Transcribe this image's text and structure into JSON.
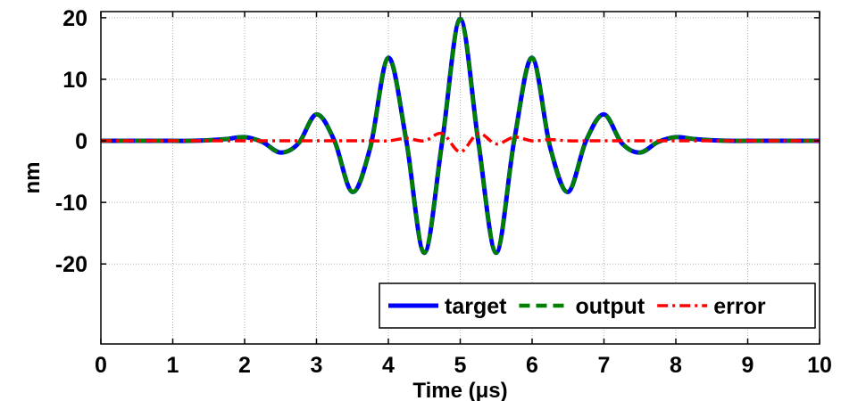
{
  "chart_data": {
    "type": "line",
    "title": "",
    "xlabel": "Time (μs)",
    "ylabel": "nm",
    "xlim": [
      0,
      10
    ],
    "ylim": [
      -33,
      21
    ],
    "grid": true,
    "legend_position": "bottom-right",
    "legend_orientation": "horizontal",
    "x_ticks": [
      0,
      1,
      2,
      3,
      4,
      5,
      6,
      7,
      8,
      9,
      10
    ],
    "x_tick_labels": [
      "0",
      "1",
      "2",
      "3",
      "4",
      "5",
      "6",
      "7",
      "8",
      "9",
      "10"
    ],
    "y_ticks": [
      20,
      10,
      0,
      -10,
      -20
    ],
    "y_tick_labels": [
      "20",
      "10",
      "0",
      "-10",
      "-20"
    ],
    "x": [
      0,
      0.25,
      0.5,
      0.75,
      1,
      1.25,
      1.5,
      1.75,
      2,
      2.25,
      2.5,
      2.75,
      3,
      3.25,
      3.5,
      3.75,
      4,
      4.25,
      4.5,
      4.75,
      5,
      5.25,
      5.5,
      5.75,
      6,
      6.25,
      6.5,
      6.75,
      7,
      7.25,
      7.5,
      7.75,
      8,
      8.25,
      8.5,
      8.75,
      9,
      9.25,
      9.5,
      9.75,
      10
    ],
    "series": [
      {
        "name": "target",
        "color": "#0000ff",
        "style": "solid",
        "values": [
          0,
          0,
          0,
          0,
          0,
          0,
          0.1,
          0.3,
          0.6,
          -0.2,
          -1.9,
          -0.4,
          4.3,
          0,
          -8.3,
          -1,
          13.5,
          0,
          -18.2,
          0,
          19.8,
          0,
          -18.2,
          0,
          13.5,
          -1,
          -8.3,
          0,
          4.3,
          -0.4,
          -1.9,
          -0.2,
          0.6,
          0.3,
          0.1,
          0,
          0,
          0,
          0,
          0,
          0
        ]
      },
      {
        "name": "output",
        "color": "#008000",
        "style": "dashed",
        "values": [
          0,
          0,
          0,
          0,
          0,
          0,
          0.1,
          0.3,
          0.6,
          -0.2,
          -1.9,
          -0.4,
          4.3,
          0,
          -8.3,
          -1,
          13.5,
          0,
          -18.2,
          0,
          19.8,
          0,
          -18.2,
          0,
          13.5,
          -1,
          -8.3,
          0,
          4.3,
          -0.4,
          -1.9,
          -0.2,
          0.6,
          0.3,
          0.1,
          0,
          0,
          0,
          0,
          0,
          0
        ]
      },
      {
        "name": "error",
        "color": "#ff0000",
        "style": "dashdot",
        "values": [
          0,
          0,
          0,
          0,
          0,
          0,
          0,
          0,
          0,
          0,
          0,
          0,
          0,
          0,
          0,
          0,
          0,
          0.4,
          0,
          1.2,
          -1.8,
          1.2,
          -0.5,
          0.6,
          0,
          0.2,
          0,
          0,
          0,
          0,
          0,
          0,
          0,
          0,
          0,
          0,
          0,
          0,
          0,
          0,
          0
        ]
      }
    ]
  }
}
